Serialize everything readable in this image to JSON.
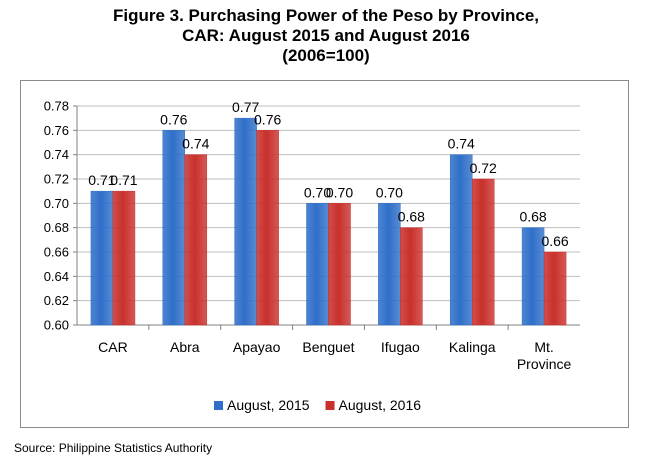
{
  "title_lines": [
    "Figure 3.  Purchasing Power of the Peso by Province,",
    "CAR: August 2015 and August 2016",
    "(2006=100)"
  ],
  "source": "Source: Philippine Statistics Authority",
  "colors": {
    "series_2015": "#2f6fc9",
    "series_2016": "#c9302c",
    "grid": "#bfbfbf",
    "axis": "#808080"
  },
  "chart_data": {
    "type": "bar",
    "title": "Figure 3.  Purchasing Power of the Peso by Province, CAR: August 2015 and August 2016 (2006=100)",
    "categories": [
      "CAR",
      "Abra",
      "Apayao",
      "Benguet",
      "Ifugao",
      "Kalinga",
      "Mt. Province"
    ],
    "category_lines": [
      [
        "CAR"
      ],
      [
        "Abra"
      ],
      [
        "Apayao"
      ],
      [
        "Benguet"
      ],
      [
        "Ifugao"
      ],
      [
        "Kalinga"
      ],
      [
        "Mt.",
        "Province"
      ]
    ],
    "series": [
      {
        "name": "August, 2015",
        "values": [
          0.71,
          0.76,
          0.77,
          0.7,
          0.7,
          0.74,
          0.68
        ],
        "labels": [
          "0.71",
          "0.76",
          "0.77",
          "0.70",
          "0.70",
          "0.74",
          "0.68"
        ]
      },
      {
        "name": "August, 2016",
        "values": [
          0.71,
          0.74,
          0.76,
          0.7,
          0.68,
          0.72,
          0.66
        ],
        "labels": [
          "0.71",
          "0.74",
          "0.76",
          "0.70",
          "0.68",
          "0.72",
          "0.66"
        ]
      }
    ],
    "ylim": [
      0.6,
      0.78
    ],
    "yticks": [
      "0.60",
      "0.62",
      "0.64",
      "0.66",
      "0.68",
      "0.70",
      "0.72",
      "0.74",
      "0.76",
      "0.78"
    ],
    "grid": true,
    "legend_position": "bottom"
  }
}
